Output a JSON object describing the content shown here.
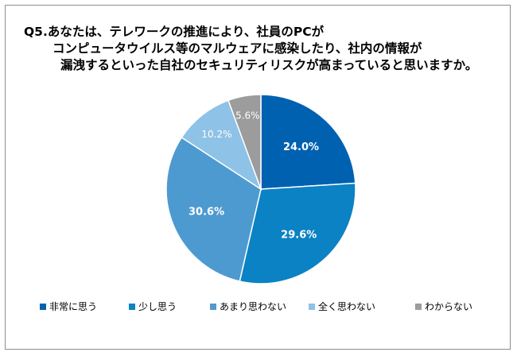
{
  "title": {
    "line1": "Q5.あなたは、テレワークの推進により、社員のPCが",
    "line2": "コンピュータウイルス等のマルウェアに感染したり、社内の情報が",
    "line3": "漏洩するといった自社のセキュリティリスクが高まっていると思いますか。"
  },
  "chart_data": {
    "type": "pie",
    "title": "Q5.あなたは、テレワークの推進により、社員のPCがコンピュータウイルス等のマルウェアに感染したり、社内の情報が漏洩するといった自社のセキュリティリスクが高まっていると思いますか。",
    "categories": [
      "非常に思う",
      "少し思う",
      "あまり思わない",
      "全く思わない",
      "わからない"
    ],
    "values": [
      24.0,
      29.6,
      30.6,
      10.2,
      5.6
    ],
    "labels": [
      "24.0%",
      "29.6%",
      "30.6%",
      "10.2%",
      "5.6%"
    ],
    "colors": [
      "#0061b1",
      "#0a82c4",
      "#4d9ad0",
      "#8ec2e6",
      "#9c9c9c"
    ],
    "start": "12 o'clock",
    "direction": "clockwise",
    "legend_position": "bottom"
  }
}
